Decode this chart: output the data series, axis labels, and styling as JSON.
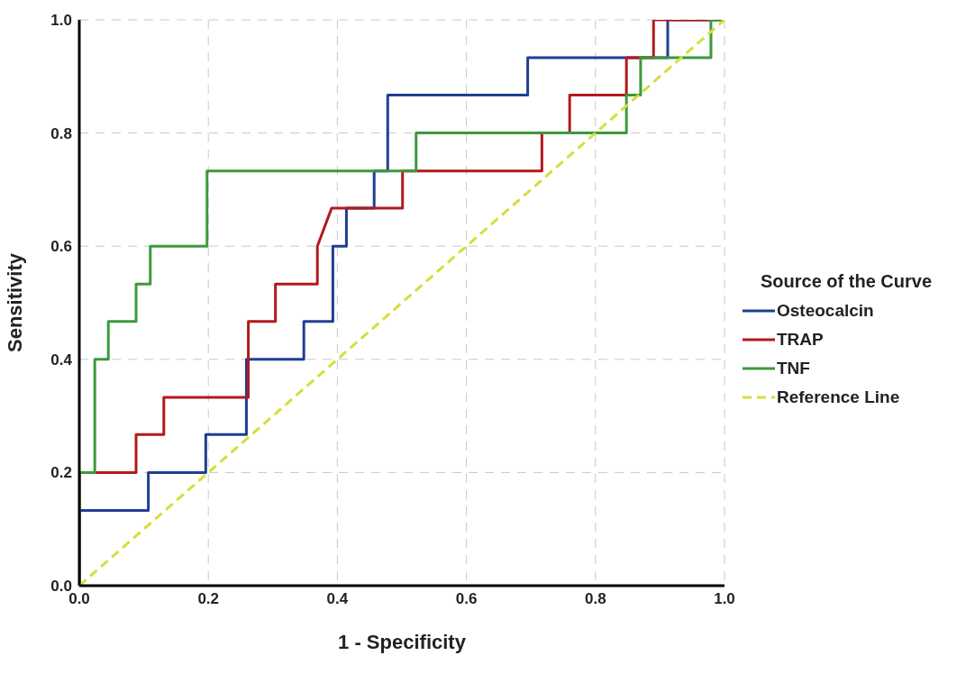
{
  "chart_data": {
    "type": "line",
    "xlabel": "1 - Specificity",
    "ylabel": "Sensitivity",
    "legend_title": "Source of the Curve",
    "legend": "right",
    "grid": true,
    "marker": "none",
    "xlim": [
      0,
      1
    ],
    "ylim": [
      0,
      1
    ],
    "xticks": [
      {
        "value": 0,
        "label": "0.0"
      },
      {
        "value": 0.2,
        "label": "0.2"
      },
      {
        "value": 0.4,
        "label": "0.4"
      },
      {
        "value": 0.6,
        "label": "0.6"
      },
      {
        "value": 0.8,
        "label": "0.8"
      },
      {
        "value": 1,
        "label": "1.0"
      }
    ],
    "yticks": [
      {
        "value": 0,
        "label": "0.0"
      },
      {
        "value": 0.2,
        "label": "0.2"
      },
      {
        "value": 0.4,
        "label": "0.4"
      },
      {
        "value": 0.6,
        "label": "0.6"
      },
      {
        "value": 0.8,
        "label": "0.8"
      },
      {
        "value": 1,
        "label": "1.0"
      }
    ],
    "series": [
      {
        "name": "Osteocalcin",
        "color": "#1f3f94",
        "line_style": "solid",
        "x": [
          0,
          0,
          0.107,
          0.107,
          0.196,
          0.196,
          0.259,
          0.259,
          0.348,
          0.348,
          0.393,
          0.393,
          0.414,
          0.414,
          0.457,
          0.457,
          0.478,
          0.478,
          0.695,
          0.695,
          0.912,
          0.912,
          1
        ],
        "values": [
          0,
          0.133,
          0.133,
          0.2,
          0.2,
          0.267,
          0.267,
          0.4,
          0.4,
          0.467,
          0.467,
          0.6,
          0.6,
          0.667,
          0.667,
          0.733,
          0.733,
          0.867,
          0.867,
          0.933,
          0.933,
          1,
          1
        ]
      },
      {
        "name": "TRAP",
        "color": "#b3191c",
        "line_style": "solid",
        "x": [
          0,
          0,
          0.088,
          0.088,
          0.131,
          0.131,
          0.262,
          0.262,
          0.304,
          0.304,
          0.369,
          0.369,
          0.391,
          0.501,
          0.501,
          0.717,
          0.717,
          0.76,
          0.76,
          0.848,
          0.848,
          0.89,
          0.89,
          1
        ],
        "values": [
          0,
          0.2,
          0.2,
          0.267,
          0.267,
          0.333,
          0.333,
          0.467,
          0.467,
          0.533,
          0.533,
          0.6,
          0.667,
          0.667,
          0.733,
          0.733,
          0.8,
          0.8,
          0.867,
          0.867,
          0.933,
          0.933,
          1,
          1
        ]
      },
      {
        "name": "TNF",
        "color": "#3b9a3b",
        "line_style": "solid",
        "x": [
          0,
          0,
          0.024,
          0.024,
          0.045,
          0.045,
          0.088,
          0.088,
          0.11,
          0.11,
          0.198,
          0.198,
          0.522,
          0.522,
          0.848,
          0.848,
          0.87,
          0.87,
          0.979,
          0.979,
          1
        ],
        "values": [
          0,
          0.2,
          0.2,
          0.4,
          0.4,
          0.467,
          0.467,
          0.533,
          0.533,
          0.6,
          0.6,
          0.733,
          0.733,
          0.8,
          0.8,
          0.867,
          0.867,
          0.933,
          0.933,
          1,
          1
        ]
      },
      {
        "name": "Reference Line",
        "color": "#d6de3a",
        "line_style": "dashed",
        "x": [
          0,
          1
        ],
        "values": [
          0,
          1
        ]
      }
    ]
  }
}
